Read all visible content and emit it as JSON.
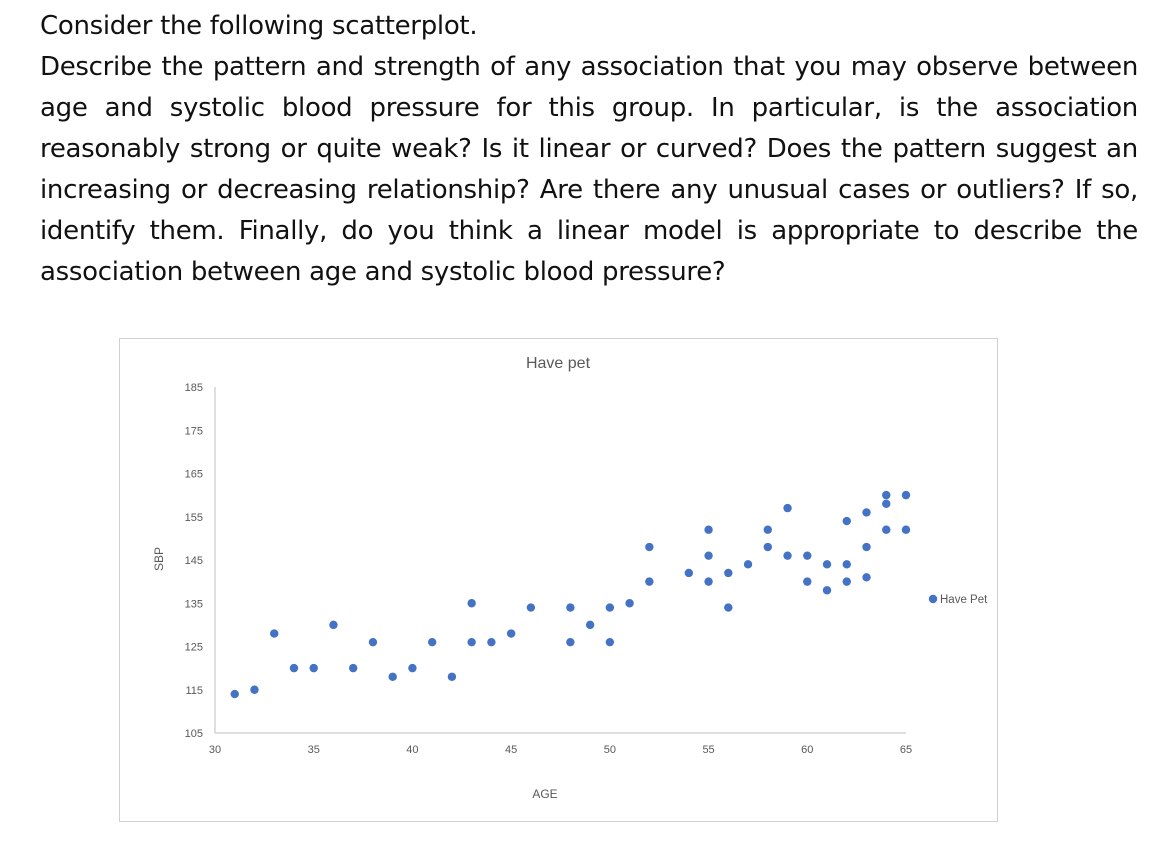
{
  "question": {
    "title": "Consider the following scatterplot.",
    "body": "Describe the pattern and strength of any association that you may observe between age and systolic blood pressure for this group. In particular, is the association reasonably strong or quite weak? Is it linear or curved? Does the pattern suggest an increasing or decreasing relationship? Are there any unusual cases or outliers? If so, identify them. Finally, do you think a linear model is appropriate to describe the association between age and systolic blood pressure?"
  },
  "chart_data": {
    "type": "scatter",
    "title": "Have pet",
    "xlabel": "AGE",
    "ylabel": "SBP",
    "xlim": [
      30,
      65
    ],
    "ylim": [
      105,
      185
    ],
    "xticks": [
      30,
      35,
      40,
      45,
      50,
      55,
      60,
      65
    ],
    "yticks": [
      105,
      115,
      125,
      135,
      145,
      155,
      165,
      175,
      185
    ],
    "grid": false,
    "legend_position": "right",
    "series": [
      {
        "name": "Have Pet",
        "color": "#4472c4",
        "points": [
          [
            31,
            114
          ],
          [
            32,
            115
          ],
          [
            33,
            128
          ],
          [
            34,
            120
          ],
          [
            35,
            120
          ],
          [
            36,
            130
          ],
          [
            37,
            120
          ],
          [
            38,
            126
          ],
          [
            39,
            118
          ],
          [
            40,
            120
          ],
          [
            41,
            126
          ],
          [
            42,
            118
          ],
          [
            43,
            126
          ],
          [
            43,
            135
          ],
          [
            44,
            126
          ],
          [
            45,
            128
          ],
          [
            46,
            134
          ],
          [
            48,
            134
          ],
          [
            48,
            126
          ],
          [
            49,
            130
          ],
          [
            50,
            134
          ],
          [
            50,
            126
          ],
          [
            51,
            135
          ],
          [
            52,
            140
          ],
          [
            52,
            148
          ],
          [
            54,
            142
          ],
          [
            55,
            140
          ],
          [
            55,
            146
          ],
          [
            55,
            152
          ],
          [
            56,
            134
          ],
          [
            56,
            142
          ],
          [
            57,
            144
          ],
          [
            58,
            148
          ],
          [
            58,
            152
          ],
          [
            59,
            157
          ],
          [
            59,
            146
          ],
          [
            60,
            146
          ],
          [
            60,
            140
          ],
          [
            61,
            144
          ],
          [
            61,
            138
          ],
          [
            62,
            154
          ],
          [
            62,
            144
          ],
          [
            62,
            140
          ],
          [
            63,
            156
          ],
          [
            63,
            148
          ],
          [
            63,
            141
          ],
          [
            64,
            160
          ],
          [
            64,
            158
          ],
          [
            64,
            152
          ],
          [
            65,
            160
          ],
          [
            65,
            152
          ]
        ]
      }
    ]
  }
}
